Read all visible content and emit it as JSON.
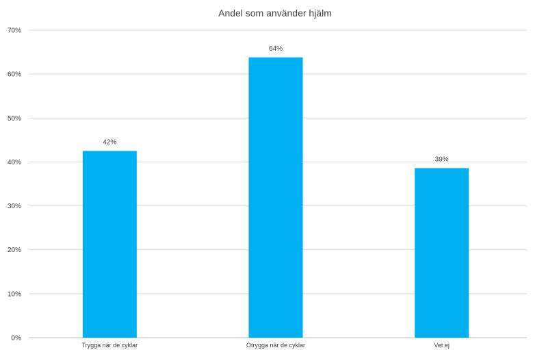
{
  "chart_data": {
    "type": "bar",
    "title": "Andel som använder hjälm",
    "categories": [
      "Trygga när de cyklar",
      "Otrygga när de cyklar",
      "Vet ej"
    ],
    "values": [
      42.5,
      63.8,
      38.6
    ],
    "data_labels": [
      "42%",
      "64%",
      "39%"
    ],
    "ylim": [
      0,
      70
    ],
    "yticks": [
      0,
      10,
      20,
      30,
      40,
      50,
      60,
      70
    ],
    "ytick_labels": [
      "0%",
      "10%",
      "20%",
      "30%",
      "40%",
      "50%",
      "60%",
      "70%"
    ],
    "xlabel": "",
    "ylabel": "",
    "grid": true,
    "legend": "none",
    "bar_color": "#00b0f0"
  }
}
